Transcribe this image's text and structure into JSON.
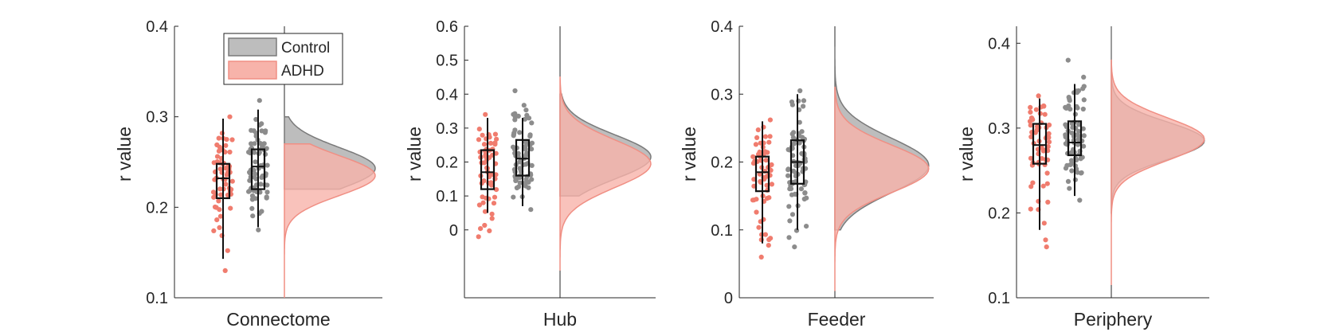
{
  "colors": {
    "control": "#8c8c8c",
    "control_fill": "#bdbdbd",
    "control_edge": "#7a7a7a",
    "adhd": "#f07c6e",
    "adhd_fill": "#f7b3aa",
    "adhd_edge": "#f08f84",
    "axis": "#262626"
  },
  "legend": {
    "placement": "top-left",
    "items": [
      {
        "label": "Control",
        "color_key": "control"
      },
      {
        "label": "ADHD",
        "color_key": "adhd"
      }
    ]
  },
  "chart_data": [
    {
      "type": "raincloud",
      "xlabel": "Connectome",
      "ylabel": "r value",
      "ylim": [
        0.1,
        0.4
      ],
      "yticks": [
        0.1,
        0.2,
        0.3,
        0.4
      ],
      "yticklabels": [
        "0.1",
        "0.2",
        "0.3",
        "0.4"
      ],
      "series": [
        {
          "name": "ADHD",
          "box": {
            "min": 0.143,
            "q1": 0.21,
            "median": 0.232,
            "q3": 0.248,
            "max": 0.298
          },
          "points": {
            "count": 60,
            "min": 0.13,
            "max": 0.3
          },
          "density": {
            "mean": 0.235,
            "sd": 0.022,
            "peak": 0.24,
            "min": 0.1,
            "max": 0.27
          }
        },
        {
          "name": "Control",
          "box": {
            "min": 0.178,
            "q1": 0.22,
            "median": 0.245,
            "q3": 0.264,
            "max": 0.308
          },
          "points": {
            "count": 75,
            "min": 0.175,
            "max": 0.318
          },
          "density": {
            "mean": 0.243,
            "sd": 0.023,
            "peak": 0.24,
            "min": 0.22,
            "max": 0.3
          }
        }
      ]
    },
    {
      "type": "raincloud",
      "xlabel": "Hub",
      "ylabel": "r value",
      "ylim": [
        -0.2,
        0.6
      ],
      "yticks": [
        0,
        0.1,
        0.2,
        0.3,
        0.4,
        0.5,
        0.6
      ],
      "yticklabels": [
        "0",
        "0.1",
        "0.2",
        "0.3",
        "0.4",
        "0.5",
        "0.6"
      ],
      "series": [
        {
          "name": "ADHD",
          "box": {
            "min": 0.05,
            "q1": 0.12,
            "median": 0.17,
            "q3": 0.235,
            "max": 0.33
          },
          "points": {
            "count": 60,
            "min": -0.02,
            "max": 0.34
          },
          "density": {
            "mean": 0.195,
            "sd": 0.07,
            "peak": 0.175,
            "min": -0.12,
            "max": 0.45
          }
        },
        {
          "name": "Control",
          "box": {
            "min": 0.07,
            "q1": 0.16,
            "median": 0.21,
            "q3": 0.265,
            "max": 0.33
          },
          "points": {
            "count": 75,
            "min": 0.06,
            "max": 0.41
          },
          "density": {
            "mean": 0.215,
            "sd": 0.065,
            "peak": 0.21,
            "min": 0.1,
            "max": 0.4
          }
        }
      ]
    },
    {
      "type": "raincloud",
      "xlabel": "Feeder",
      "ylabel": "r value",
      "ylim": [
        0,
        0.4
      ],
      "yticks": [
        0,
        0.1,
        0.2,
        0.3,
        0.4
      ],
      "yticklabels": [
        "0",
        "0.1",
        "0.2",
        "0.3",
        "0.4"
      ],
      "series": [
        {
          "name": "ADHD",
          "box": {
            "min": 0.08,
            "q1": 0.157,
            "median": 0.185,
            "q3": 0.208,
            "max": 0.26
          },
          "points": {
            "count": 60,
            "min": 0.06,
            "max": 0.262
          },
          "density": {
            "mean": 0.19,
            "sd": 0.035,
            "peak": 0.1,
            "min": 0.01,
            "max": 0.31
          }
        },
        {
          "name": "Control",
          "box": {
            "min": 0.1,
            "q1": 0.168,
            "median": 0.2,
            "q3": 0.232,
            "max": 0.3
          },
          "points": {
            "count": 75,
            "min": 0.075,
            "max": 0.305
          },
          "density": {
            "mean": 0.195,
            "sd": 0.04,
            "peak": 0.095,
            "min": 0.1,
            "max": 0.37
          }
        }
      ]
    },
    {
      "type": "raincloud",
      "xlabel": "Periphery",
      "ylabel": "r value",
      "ylim": [
        0.1,
        0.42
      ],
      "yticks": [
        0.1,
        0.2,
        0.3,
        0.4
      ],
      "yticklabels": [
        "0.1",
        "0.2",
        "0.3",
        "0.4"
      ],
      "series": [
        {
          "name": "ADHD",
          "box": {
            "min": 0.18,
            "q1": 0.258,
            "median": 0.28,
            "q3": 0.305,
            "max": 0.335
          },
          "points": {
            "count": 60,
            "min": 0.16,
            "max": 0.338
          },
          "density": {
            "mean": 0.287,
            "sd": 0.025,
            "peak": 0.1,
            "min": 0.115,
            "max": 0.38
          }
        },
        {
          "name": "Control",
          "box": {
            "min": 0.22,
            "q1": 0.268,
            "median": 0.283,
            "q3": 0.308,
            "max": 0.352
          },
          "points": {
            "count": 75,
            "min": 0.215,
            "max": 0.38
          },
          "density": {
            "mean": 0.285,
            "sd": 0.022,
            "peak": 0.11,
            "min": 0.2,
            "max": 0.42
          }
        }
      ]
    }
  ]
}
